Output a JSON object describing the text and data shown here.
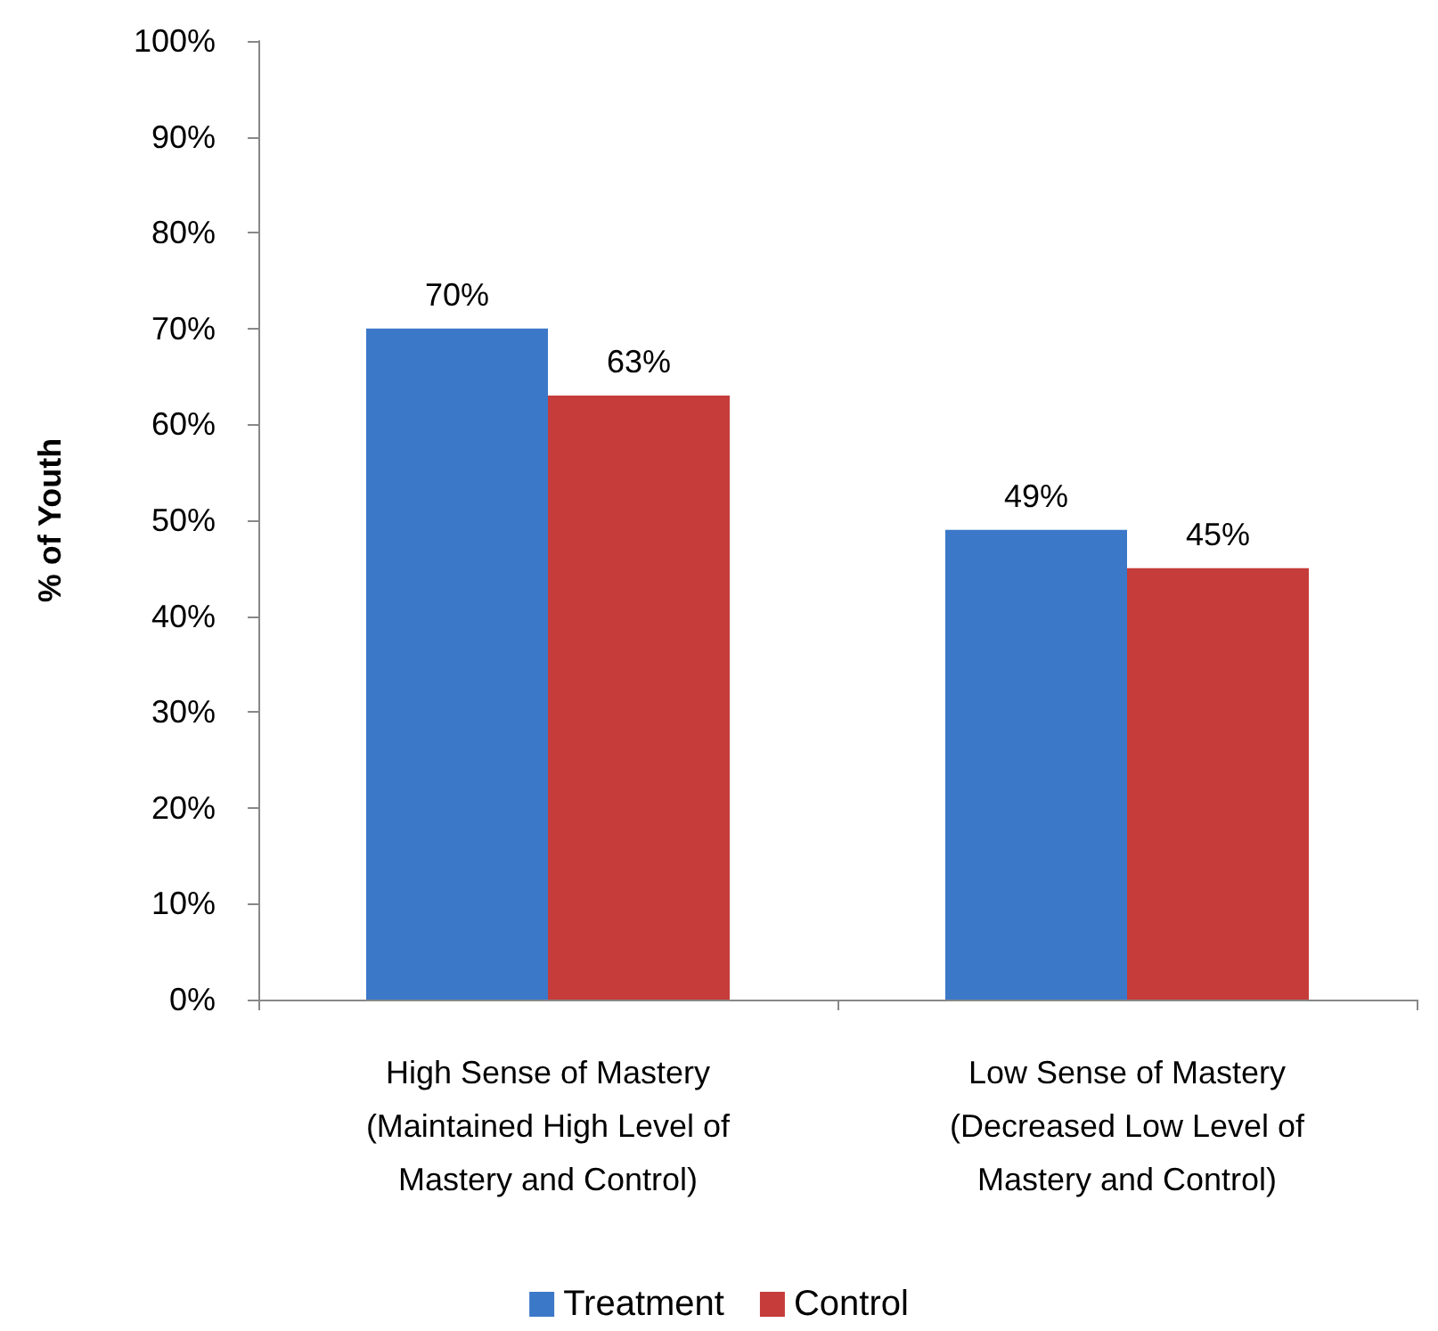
{
  "chart_data": {
    "type": "bar",
    "ylabel": "% of Youth",
    "categories": [
      "High Sense of Mastery\n(Maintained High Level of\nMastery and Control)",
      "Low Sense of Mastery\n(Decreased Low Level of\nMastery and Control)"
    ],
    "series": [
      {
        "name": "Treatment",
        "color": "#3b78c8",
        "values": [
          70,
          49
        ],
        "value_labels": [
          "70%",
          "49%"
        ]
      },
      {
        "name": "Control",
        "color": "#c53c3a",
        "values": [
          63,
          45
        ],
        "value_labels": [
          "63%",
          "45%"
        ]
      }
    ],
    "ylim": [
      0,
      100
    ],
    "yticks": [
      {
        "value": 0,
        "label": "0%"
      },
      {
        "value": 10,
        "label": "10%"
      },
      {
        "value": 20,
        "label": "20%"
      },
      {
        "value": 30,
        "label": "30%"
      },
      {
        "value": 40,
        "label": "40%"
      },
      {
        "value": 50,
        "label": "50%"
      },
      {
        "value": 60,
        "label": "60%"
      },
      {
        "value": 70,
        "label": "70%"
      },
      {
        "value": 80,
        "label": "80%"
      },
      {
        "value": 90,
        "label": "90%"
      },
      {
        "value": 100,
        "label": "100%"
      }
    ],
    "grid": false,
    "legend": "bottom"
  }
}
